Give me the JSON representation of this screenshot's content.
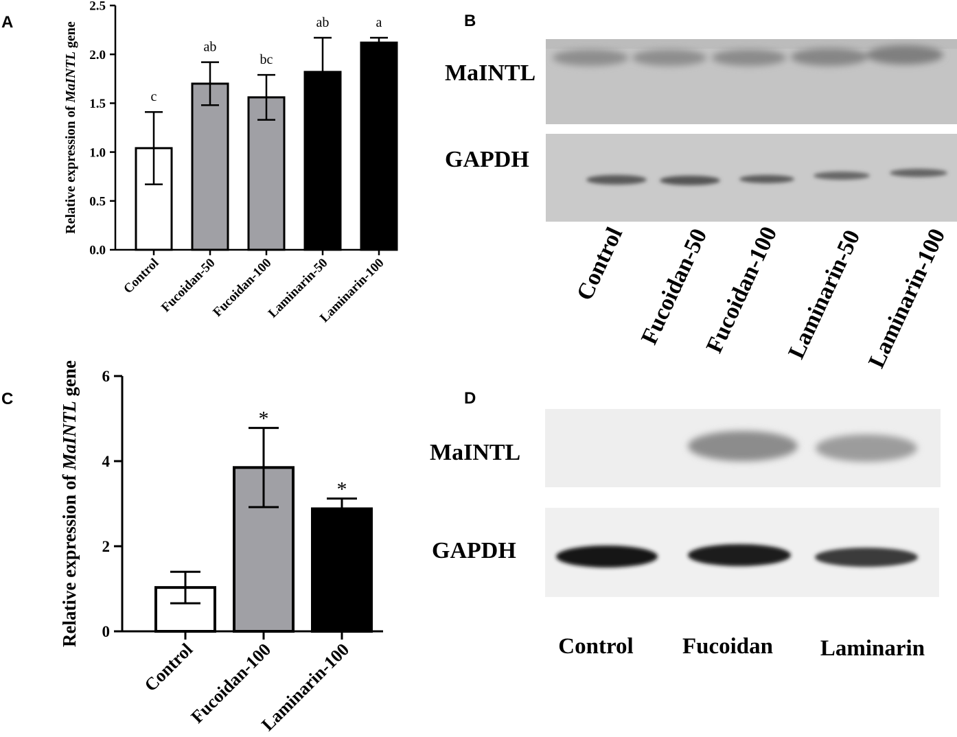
{
  "panels": {
    "a": "A",
    "b": "B",
    "c": "C",
    "d": "D"
  },
  "chart_data": [
    {
      "type": "bar",
      "panel": "A",
      "title": "",
      "ylabel_parts": [
        "Relative expression of ",
        "MaINTL",
        " gene"
      ],
      "xlabel": "",
      "ylim": [
        0,
        2.5
      ],
      "yticks": [
        "0.0",
        "0.5",
        "1.0",
        "1.5",
        "2.0",
        "2.5"
      ],
      "categories": [
        "Control",
        "Fucoidan-50",
        "Fucoidan-100",
        "Laminarin-50",
        "Laminarin-100"
      ],
      "values": [
        1.04,
        1.7,
        1.56,
        1.82,
        2.12
      ],
      "errors": [
        0.37,
        0.22,
        0.23,
        0.35,
        0.05
      ],
      "annotations": [
        "c",
        "ab",
        "bc",
        "ab",
        "a"
      ],
      "colors": [
        "#ffffff",
        "#a0a0a5",
        "#a0a0a5",
        "#000000",
        "#000000"
      ]
    },
    {
      "type": "bar",
      "panel": "C",
      "title": "",
      "ylabel_parts": [
        "Relative expression of ",
        "MaINTL",
        " gene"
      ],
      "xlabel": "",
      "ylim": [
        0,
        6
      ],
      "yticks": [
        "0",
        "2",
        "4",
        "6"
      ],
      "categories": [
        "Control",
        "Fucoidan-100",
        "Laminarin-100"
      ],
      "values": [
        1.03,
        3.85,
        2.88
      ],
      "errors": [
        0.37,
        0.93,
        0.24
      ],
      "annotations": [
        "",
        "*",
        "*"
      ],
      "colors": [
        "#ffffff",
        "#a0a0a5",
        "#000000"
      ]
    }
  ],
  "blots": {
    "b": {
      "rows": [
        "MaINTL",
        "GAPDH"
      ],
      "lanes": [
        "Control",
        "Fucoidan-50",
        "Fucoidan-100",
        "Laminarin-50",
        "Laminarin-100"
      ]
    },
    "d": {
      "rows": [
        "MaINTL",
        "GAPDH"
      ],
      "lanes": [
        "Control",
        "Fucoidan",
        "Laminarin"
      ]
    }
  }
}
